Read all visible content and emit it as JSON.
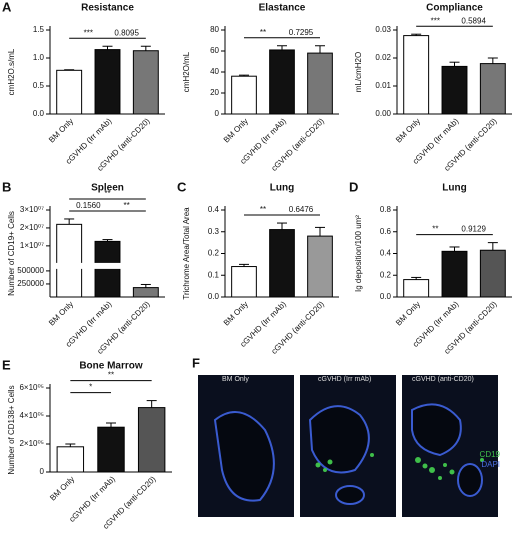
{
  "chart_data": [
    {
      "type": "bar",
      "panel": "A",
      "title": "Resistance",
      "y_label": "cmH2O.s/mL",
      "categories": [
        "BM Only",
        "cGVHD (Irr mAb)",
        "cGVHD (anti-CD20)"
      ],
      "values": [
        0.78,
        1.15,
        1.13
      ],
      "errors": [
        0.01,
        0.06,
        0.08
      ],
      "colors": [
        "#ffffff",
        "#111111",
        "#777777"
      ],
      "ylim": [
        0,
        1.5
      ],
      "yticks": [
        {
          "value": 0,
          "label": "0.0"
        },
        {
          "value": 0.5,
          "label": "0.5"
        },
        {
          "value": 1,
          "label": "1.0"
        },
        {
          "value": 1.5,
          "label": "1.5"
        }
      ],
      "annotations": [
        {
          "text": "***",
          "from": 0,
          "to": 1
        },
        {
          "text": "0.8095",
          "from": 1,
          "to": 2
        }
      ]
    },
    {
      "type": "bar",
      "title": "Elastance",
      "y_label": "cmH2O/mL",
      "categories": [
        "BM Only",
        "cGVHD (Irr mAb)",
        "cGVHD (anti-CD20)"
      ],
      "values": [
        36,
        61,
        58
      ],
      "errors": [
        1,
        4,
        7
      ],
      "colors": [
        "#ffffff",
        "#111111",
        "#777777"
      ],
      "ylim": [
        0,
        80
      ],
      "yticks": [
        0,
        20,
        40,
        60,
        80
      ],
      "annotations": [
        {
          "text": "**",
          "from": 0,
          "to": 1
        },
        {
          "text": "0.7295",
          "from": 1,
          "to": 2
        }
      ]
    },
    {
      "type": "bar",
      "title": "Compliance",
      "y_label": "mL/cmH2O",
      "categories": [
        "BM Only",
        "cGVHD (Irr mAb)",
        "cGVHD (anti-CD20)"
      ],
      "values": [
        0.028,
        0.017,
        0.018
      ],
      "errors": [
        0.0005,
        0.0015,
        0.002
      ],
      "colors": [
        "#ffffff",
        "#111111",
        "#777777"
      ],
      "ylim": [
        0,
        0.03
      ],
      "yticks": [
        {
          "value": 0,
          "label": "0.00"
        },
        {
          "value": 0.01,
          "label": "0.01"
        },
        {
          "value": 0.02,
          "label": "0.02"
        },
        {
          "value": 0.03,
          "label": "0.03"
        }
      ],
      "annotations": [
        {
          "text": "***",
          "from": 0,
          "to": 1
        },
        {
          "text": "0.5894",
          "from": 1,
          "to": 2
        }
      ]
    },
    {
      "type": "bar",
      "panel": "B",
      "title": "Spleen",
      "y_label": "Number of CD19+ Cells",
      "categories": [
        "BM Only",
        "cGVHD (Irr mAb)",
        "cGVHD (anti-CD20)"
      ],
      "values": [
        22000000,
        12500000,
        180000
      ],
      "errors": [
        3000000,
        1000000,
        60000
      ],
      "colors": [
        "#ffffff",
        "#111111",
        "#777777"
      ],
      "ylim": [
        0,
        30000000
      ],
      "ybreak": 500000,
      "yticks": [
        250000,
        500000,
        {
          "value": 10000000,
          "label": "1×10⁰⁷"
        },
        {
          "value": 20000000,
          "label": "2×10⁰⁷"
        },
        {
          "value": 30000000,
          "label": "3×10⁰⁷"
        }
      ],
      "annotations": [
        {
          "text": "0.1560",
          "from": 0,
          "to": 1
        },
        {
          "text": "**",
          "from": 1,
          "to": 2
        },
        {
          "text": "**",
          "from": 0,
          "to": 2
        }
      ]
    },
    {
      "type": "bar",
      "panel": "C",
      "title": "Lung",
      "y_label": "Trichrome Area/Total Area",
      "categories": [
        "BM Only",
        "cGVHD (Irr mAb)",
        "cGVHD (anti-CD20)"
      ],
      "values": [
        0.14,
        0.31,
        0.28
      ],
      "errors": [
        0.01,
        0.03,
        0.04
      ],
      "colors": [
        "#ffffff",
        "#111111",
        "#999999"
      ],
      "ylim": [
        0,
        0.4
      ],
      "yticks": [
        {
          "value": 0,
          "label": "0.0"
        },
        0.1,
        0.2,
        0.3,
        0.4
      ],
      "annotations": [
        {
          "text": "**",
          "from": 0,
          "to": 1
        },
        {
          "text": "0.6476",
          "from": 1,
          "to": 2
        }
      ]
    },
    {
      "type": "bar",
      "panel": "D",
      "title": "Lung",
      "y_label": "Ig deposition/100 um²",
      "categories": [
        "BM Only",
        "cGVHD (Irr mAb)",
        "cGVHD (anti-CD20)"
      ],
      "values": [
        0.16,
        0.42,
        0.43
      ],
      "errors": [
        0.02,
        0.04,
        0.07
      ],
      "colors": [
        "#ffffff",
        "#111111",
        "#555555"
      ],
      "ylim": [
        0,
        0.8
      ],
      "yticks": [
        {
          "value": 0,
          "label": "0.0"
        },
        0.2,
        0.4,
        0.6,
        0.8
      ],
      "annotations": [
        {
          "text": "**",
          "from": 0,
          "to": 1
        },
        {
          "text": "0.9129",
          "from": 1,
          "to": 2
        }
      ]
    },
    {
      "type": "bar",
      "panel": "E",
      "title": "Bone Marrow",
      "y_label": "Number of CD138+ Cells",
      "categories": [
        "BM Only",
        "cGVHD (Irr mAb)",
        "cGVHD (anti-CD20)"
      ],
      "values": [
        180000,
        320000,
        460000
      ],
      "errors": [
        20000,
        30000,
        50000
      ],
      "colors": [
        "#ffffff",
        "#111111",
        "#555555"
      ],
      "ylim": [
        0,
        600000
      ],
      "yticks": [
        0,
        {
          "value": 200000,
          "label": "2×10⁰⁵"
        },
        {
          "value": 400000,
          "label": "4×10⁰⁵"
        },
        {
          "value": 600000,
          "label": "6×10⁰⁵"
        }
      ],
      "annotations": [
        {
          "text": "*",
          "from": 0,
          "to": 1
        },
        {
          "text": "**",
          "from": 0,
          "to": 2
        }
      ]
    }
  ],
  "figure_f": {
    "panel": "F",
    "labels": [
      "BM Only",
      "cGVHD (Irr mAb)",
      "cGVHD (anti-CD20)"
    ],
    "legend": [
      "CD19",
      "DAPI"
    ]
  }
}
